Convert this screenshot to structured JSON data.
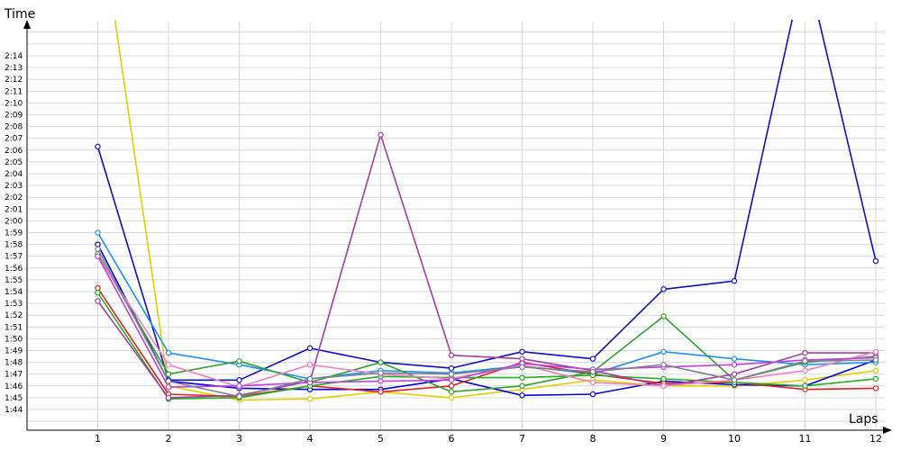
{
  "chart_data": {
    "type": "line",
    "xlabel": "Laps",
    "ylabel": "Time",
    "x": [
      1,
      2,
      3,
      4,
      5,
      6,
      7,
      8,
      9,
      10,
      11,
      12
    ],
    "ylim": [
      103,
      137
    ],
    "y_ticks": [
      "1:44",
      "1:45",
      "1:46",
      "1:47",
      "1:48",
      "1:49",
      "1:50",
      "1:51",
      "1:52",
      "1:53",
      "1:54",
      "1:55",
      "1:56",
      "1:57",
      "1:58",
      "1:59",
      "2:00",
      "2:01",
      "2:02",
      "2:03",
      "2:04",
      "2:05",
      "2:06",
      "2:07",
      "2:08",
      "2:09",
      "2:10",
      "2:11",
      "2:12",
      "2:13",
      "2:14"
    ],
    "x_ticks": [
      "1",
      "2",
      "3",
      "4",
      "5",
      "6",
      "7",
      "8",
      "9",
      "10",
      "11",
      "12"
    ],
    "grid": true,
    "legend": "none",
    "series": [
      {
        "color": "#e0d000",
        "values": [
          147,
          106.0,
          104.8,
          104.9,
          105.5,
          105.0,
          105.7,
          106.5,
          106.0,
          106.0,
          106.5,
          107.3
        ]
      },
      {
        "color": "#1010c0",
        "values": [
          126.3,
          106.5,
          106.5,
          109.2,
          108.0,
          107.5,
          108.9,
          108.3,
          114.2,
          114.9,
          142,
          116.6
        ]
      },
      {
        "color": "#0000e0",
        "values": [
          118.0,
          106.4,
          105.8,
          105.7,
          105.7,
          106.6,
          105.2,
          105.3,
          106.4,
          106.1,
          106.0,
          108.2
        ]
      },
      {
        "color": "#2090f0",
        "values": [
          119.0,
          108.8,
          107.8,
          106.6,
          107.3,
          107.1,
          107.7,
          107.0,
          108.9,
          108.3,
          107.8,
          108.0
        ]
      },
      {
        "color": "#e02020",
        "values": [
          114.3,
          105.3,
          105.1,
          106.0,
          105.5,
          106.0,
          108.0,
          107.0,
          106.2,
          106.3,
          105.7,
          105.8
        ]
      },
      {
        "color": "#20b020",
        "values": [
          113.9,
          104.9,
          105.0,
          106.0,
          106.8,
          106.7,
          106.7,
          106.9,
          106.6,
          106.3,
          106.0,
          106.6
        ]
      },
      {
        "color": "#30a030",
        "values": [
          117.2,
          107.0,
          108.1,
          106.3,
          108.0,
          105.5,
          106.0,
          107.2,
          111.9,
          106.5,
          108.0,
          108.5
        ]
      },
      {
        "color": "#a040a0",
        "values": [
          113.2,
          105.0,
          105.2,
          106.4,
          127.3,
          108.6,
          108.3,
          107.3,
          106.0,
          107.0,
          108.8,
          108.8
        ]
      },
      {
        "color": "#f080c0",
        "values": [
          117.0,
          107.8,
          105.9,
          107.8,
          107.0,
          106.6,
          107.8,
          106.3,
          106.0,
          106.5,
          107.3,
          108.9
        ]
      },
      {
        "color": "#c040e0",
        "values": [
          117.0,
          105.9,
          106.0,
          106.3,
          106.4,
          106.5,
          107.9,
          107.4,
          107.6,
          107.8,
          108.2,
          108.4
        ]
      },
      {
        "color": "#808090",
        "values": [
          117.6,
          106.4,
          105.1,
          106.6,
          107.1,
          107.0,
          107.6,
          107.2,
          107.8,
          106.5,
          108.1,
          108.2
        ]
      }
    ]
  }
}
